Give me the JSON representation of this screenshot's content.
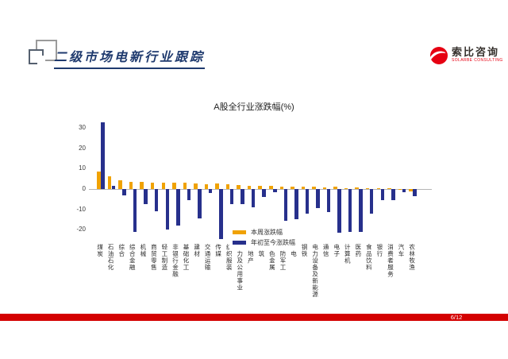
{
  "slide": {
    "title": "二级市场电新行业跟踪",
    "page_number": "6/12"
  },
  "logo": {
    "name_cn": "索比咨询",
    "name_en": "SOLARBE CONSULTING",
    "brand_red": "#e60012"
  },
  "colors": {
    "week_bar": "#f0a202",
    "ytd_bar": "#27308c",
    "footer_red": "#d40000",
    "title_navy": "#1f3a6e"
  },
  "chart_data": {
    "type": "bar",
    "title": "A股全行业涨跌幅(%)",
    "categories": [
      "煤炭",
      "石油石化",
      "综合",
      "综合金融",
      "机械",
      "商贸零售",
      "轻工制造",
      "非银行金融",
      "基础化工",
      "建材",
      "交通运输",
      "传媒",
      "纺织服装",
      "电力及公用事业",
      "房地产",
      "建筑",
      "有色金属",
      "国防军工",
      "家电",
      "钢铁",
      "电力设备及新能源",
      "通信",
      "电子",
      "计算机",
      "医药",
      "食品饮料",
      "银行",
      "消费者服务",
      "汽车",
      "农林牧渔"
    ],
    "series": [
      {
        "name": "本周涨跌幅",
        "color": "#f0a202",
        "values": [
          8.5,
          6.3,
          4.2,
          3.6,
          3.6,
          3.2,
          3.0,
          3.0,
          3.0,
          2.8,
          2.5,
          2.8,
          2.2,
          1.8,
          1.6,
          1.5,
          1.5,
          1.3,
          1.2,
          1.2,
          1.0,
          0.8,
          1.0,
          0.5,
          0.8,
          0.5,
          0.3,
          0.3,
          -0.5,
          -1.0
        ]
      },
      {
        "name": "年初至今涨跌幅",
        "color": "#27308c",
        "values": [
          33,
          1.5,
          -3,
          -21,
          -7.5,
          -11,
          -20,
          -18,
          -5.5,
          -14.5,
          -2,
          -24.5,
          -7.5,
          -7.5,
          -9,
          -4,
          -1.5,
          -15.5,
          -15,
          -12,
          -9.5,
          -11.5,
          -21.5,
          -21,
          -21,
          -12,
          -5.5,
          -5.5,
          -1.5,
          -3.5
        ]
      }
    ],
    "yticks": [
      30,
      20,
      10,
      0,
      -10,
      -20
    ],
    "ylim": [
      -26,
      36
    ],
    "grid": false,
    "legend_position": "inside-bottom-right"
  }
}
